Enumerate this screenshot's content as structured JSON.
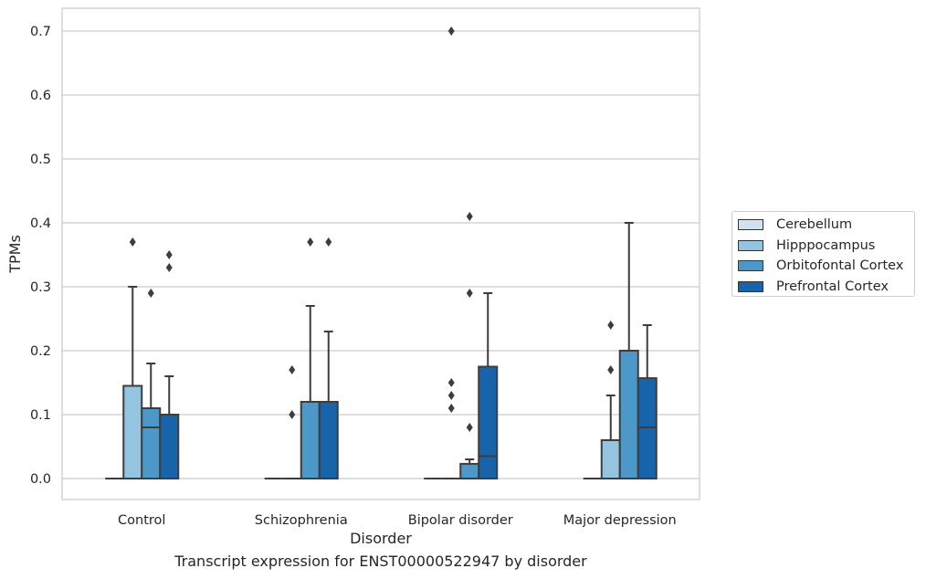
{
  "chart_data": {
    "type": "box",
    "title": "",
    "caption": "Transcript expression for ENST00000522947 by disorder",
    "xlabel": "Disorder",
    "ylabel": "TPMs",
    "ylim": [
      -0.034,
      0.735
    ],
    "yticks": [
      "0.0",
      "0.1",
      "0.2",
      "0.3",
      "0.4",
      "0.5",
      "0.6",
      "0.7"
    ],
    "ytick_values": [
      0,
      0.1,
      0.2,
      0.3,
      0.4,
      0.5,
      0.6,
      0.7
    ],
    "grid": true,
    "legend_position": "right",
    "categories": [
      "Control",
      "Schizophrenia",
      "Bipolar disorder",
      "Major depression"
    ],
    "series": [
      {
        "name": "Cerebellum",
        "color": "#d0e1f2",
        "boxes": [
          {
            "q1": 0,
            "median": 0,
            "q3": 0,
            "whisker_low": 0,
            "whisker_high": 0,
            "outliers": []
          },
          {
            "q1": 0,
            "median": 0,
            "q3": 0,
            "whisker_low": 0,
            "whisker_high": 0,
            "outliers": []
          },
          {
            "q1": 0,
            "median": 0,
            "q3": 0,
            "whisker_low": 0,
            "whisker_high": 0,
            "outliers": []
          },
          {
            "q1": 0,
            "median": 0,
            "q3": 0,
            "whisker_low": 0,
            "whisker_high": 0,
            "outliers": []
          }
        ]
      },
      {
        "name": "Hipppocampus",
        "color": "#94c4df",
        "boxes": [
          {
            "q1": 0,
            "median": 0,
            "q3": 0.145,
            "whisker_low": 0,
            "whisker_high": 0.3,
            "outliers": [
              0.37
            ]
          },
          {
            "q1": 0,
            "median": 0,
            "q3": 0,
            "whisker_low": 0,
            "whisker_high": 0,
            "outliers": [
              0.1,
              0.17
            ]
          },
          {
            "q1": 0,
            "median": 0,
            "q3": 0,
            "whisker_low": 0,
            "whisker_high": 0,
            "outliers": [
              0.11,
              0.13,
              0.15,
              0.7
            ]
          },
          {
            "q1": 0,
            "median": 0,
            "q3": 0.06,
            "whisker_low": 0,
            "whisker_high": 0.13,
            "outliers": [
              0.17,
              0.24
            ]
          }
        ]
      },
      {
        "name": "Orbitofontal Cortex",
        "color": "#4b98c9",
        "boxes": [
          {
            "q1": 0,
            "median": 0.08,
            "q3": 0.11,
            "whisker_low": 0,
            "whisker_high": 0.18,
            "outliers": [
              0.29
            ]
          },
          {
            "q1": 0,
            "median": 0,
            "q3": 0.12,
            "whisker_low": 0,
            "whisker_high": 0.27,
            "outliers": [
              0.37
            ]
          },
          {
            "q1": 0,
            "median": 0,
            "q3": 0.023,
            "whisker_low": 0,
            "whisker_high": 0.03,
            "outliers": [
              0.08,
              0.29,
              0.41
            ]
          },
          {
            "q1": 0,
            "median": 0,
            "q3": 0.2,
            "whisker_low": 0,
            "whisker_high": 0.4,
            "outliers": []
          }
        ]
      },
      {
        "name": "Prefrontal Cortex",
        "color": "#1764ab",
        "boxes": [
          {
            "q1": 0,
            "median": 0,
            "q3": 0.1,
            "whisker_low": 0,
            "whisker_high": 0.16,
            "outliers": [
              0.33,
              0.35
            ]
          },
          {
            "q1": 0,
            "median": 0,
            "q3": 0.12,
            "whisker_low": 0,
            "whisker_high": 0.23,
            "outliers": [
              0.37
            ]
          },
          {
            "q1": 0,
            "median": 0.035,
            "q3": 0.175,
            "whisker_low": 0,
            "whisker_high": 0.29,
            "outliers": []
          },
          {
            "q1": 0,
            "median": 0.08,
            "q3": 0.157,
            "whisker_low": 0,
            "whisker_high": 0.24,
            "outliers": []
          }
        ]
      }
    ]
  }
}
